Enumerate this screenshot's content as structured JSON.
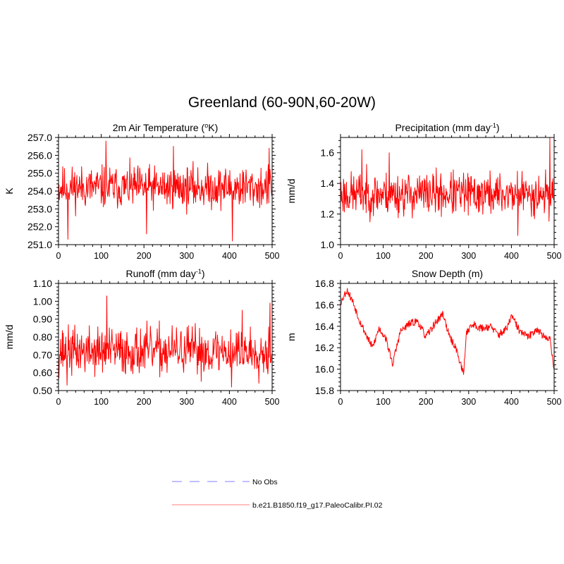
{
  "figure": {
    "title": "Greenland (60-90N,60-20W)"
  },
  "colors": {
    "series": "#ff0000",
    "no_obs": "#9999ff",
    "legend_line": "#ff9999",
    "axis": "#000000"
  },
  "chart_data": [
    {
      "type": "line",
      "title": "2m Air Temperature (",
      "title_sup": "o",
      "title_end": "K)",
      "xlabel": "",
      "ylabel": "K",
      "xlim": [
        0,
        500
      ],
      "ylim": [
        251.0,
        257.0
      ],
      "xticks": [
        0,
        100,
        200,
        300,
        400,
        500
      ],
      "xtick_labels": [
        "0",
        "100",
        "200",
        "300",
        "400",
        "500"
      ],
      "yticks": [
        251.0,
        252.0,
        253.0,
        254.0,
        255.0,
        256.0,
        257.0
      ],
      "ytick_labels": [
        "251.0",
        "252.0",
        "253.0",
        "254.0",
        "255.0",
        "256.0",
        "257.0"
      ],
      "series": [
        {
          "name": "b.e21.B1850.f19_g17.PaleoCalibr.PI.02",
          "mode": "noise",
          "mean": 254.2,
          "amp": 0.75,
          "lo": 251.2,
          "hi": 256.8,
          "seed": 11,
          "spikes": [
            [
              111,
              256.8
            ],
            [
              269,
              256.5
            ],
            [
              493,
              256.4
            ],
            [
              407,
              251.2
            ],
            [
              22,
              251.3
            ],
            [
              206,
              251.6
            ]
          ]
        }
      ]
    },
    {
      "type": "line",
      "title": "Precipitation (mm day",
      "title_sup": "-1",
      "title_end": ")",
      "xlabel": "",
      "ylabel": "mm/d",
      "xlim": [
        0,
        500
      ],
      "ylim": [
        1.0,
        1.7
      ],
      "xticks": [
        0,
        100,
        200,
        300,
        400,
        500
      ],
      "xtick_labels": [
        "0",
        "100",
        "200",
        "300",
        "400",
        "500"
      ],
      "yticks": [
        1.0,
        1.2,
        1.4,
        1.6
      ],
      "ytick_labels": [
        "1.0",
        "1.2",
        "1.4",
        "1.6"
      ],
      "series": [
        {
          "name": "b.e21.B1850.f19_g17.PaleoCalibr.PI.02",
          "mode": "noise",
          "mean": 1.33,
          "amp": 0.09,
          "lo": 1.07,
          "hi": 1.7,
          "seed": 23,
          "spikes": [
            [
              490,
              1.7
            ],
            [
              50,
              1.62
            ],
            [
              114,
              1.6
            ],
            [
              415,
              1.06
            ]
          ]
        }
      ]
    },
    {
      "type": "line",
      "title": "Runoff (mm day",
      "title_sup": "-1",
      "title_end": ")",
      "xlabel": "",
      "ylabel": "mm/d",
      "xlim": [
        0,
        500
      ],
      "ylim": [
        0.5,
        1.1
      ],
      "xticks": [
        0,
        100,
        200,
        300,
        400,
        500
      ],
      "xtick_labels": [
        "0",
        "100",
        "200",
        "300",
        "400",
        "500"
      ],
      "yticks": [
        0.5,
        0.6,
        0.7,
        0.8,
        0.9,
        1.0,
        1.1
      ],
      "ytick_labels": [
        "0.50",
        "0.60",
        "0.70",
        "0.80",
        "0.90",
        "1.00",
        "1.10"
      ],
      "series": [
        {
          "name": "b.e21.B1850.f19_g17.PaleoCalibr.PI.02",
          "mode": "noise",
          "mean": 0.72,
          "amp": 0.085,
          "lo": 0.52,
          "hi": 1.03,
          "seed": 37,
          "spikes": [
            [
              113,
              1.03
            ],
            [
              495,
              0.99
            ],
            [
              430,
              0.95
            ],
            [
              20,
              0.53
            ],
            [
              405,
              0.52
            ]
          ]
        }
      ]
    },
    {
      "type": "line",
      "title": "Snow Depth (m)",
      "title_sup": "",
      "title_end": "",
      "xlabel": "",
      "ylabel": "m",
      "xlim": [
        0,
        500
      ],
      "ylim": [
        15.8,
        16.8
      ],
      "xticks": [
        0,
        100,
        200,
        300,
        400,
        500
      ],
      "xtick_labels": [
        "0",
        "100",
        "200",
        "300",
        "400",
        "500"
      ],
      "yticks": [
        15.8,
        16.0,
        16.2,
        16.4,
        16.6,
        16.8
      ],
      "ytick_labels": [
        "15.8",
        "16.0",
        "16.2",
        "16.4",
        "16.6",
        "16.8"
      ],
      "series": [
        {
          "name": "b.e21.B1850.f19_g17.PaleoCalibr.PI.02",
          "mode": "trend",
          "amp": 0.035,
          "lo": 15.95,
          "hi": 16.76,
          "seed": 53,
          "anchors": [
            [
              0,
              16.62
            ],
            [
              15,
              16.74
            ],
            [
              30,
              16.62
            ],
            [
              45,
              16.45
            ],
            [
              60,
              16.32
            ],
            [
              75,
              16.2
            ],
            [
              90,
              16.38
            ],
            [
              105,
              16.3
            ],
            [
              122,
              16.05
            ],
            [
              140,
              16.35
            ],
            [
              160,
              16.42
            ],
            [
              180,
              16.45
            ],
            [
              200,
              16.3
            ],
            [
              220,
              16.42
            ],
            [
              240,
              16.52
            ],
            [
              255,
              16.3
            ],
            [
              270,
              16.2
            ],
            [
              288,
              15.95
            ],
            [
              295,
              16.35
            ],
            [
              310,
              16.42
            ],
            [
              330,
              16.38
            ],
            [
              350,
              16.4
            ],
            [
              370,
              16.32
            ],
            [
              390,
              16.38
            ],
            [
              400,
              16.5
            ],
            [
              420,
              16.35
            ],
            [
              440,
              16.3
            ],
            [
              460,
              16.38
            ],
            [
              480,
              16.28
            ],
            [
              490,
              16.3
            ],
            [
              500,
              16.0
            ]
          ]
        }
      ]
    }
  ],
  "legend": {
    "items": [
      {
        "label": "No Obs",
        "style": "dashed"
      },
      {
        "label": "b.e21.B1850.f19_g17.PaleoCalibr.PI.02",
        "style": "solid"
      }
    ]
  }
}
